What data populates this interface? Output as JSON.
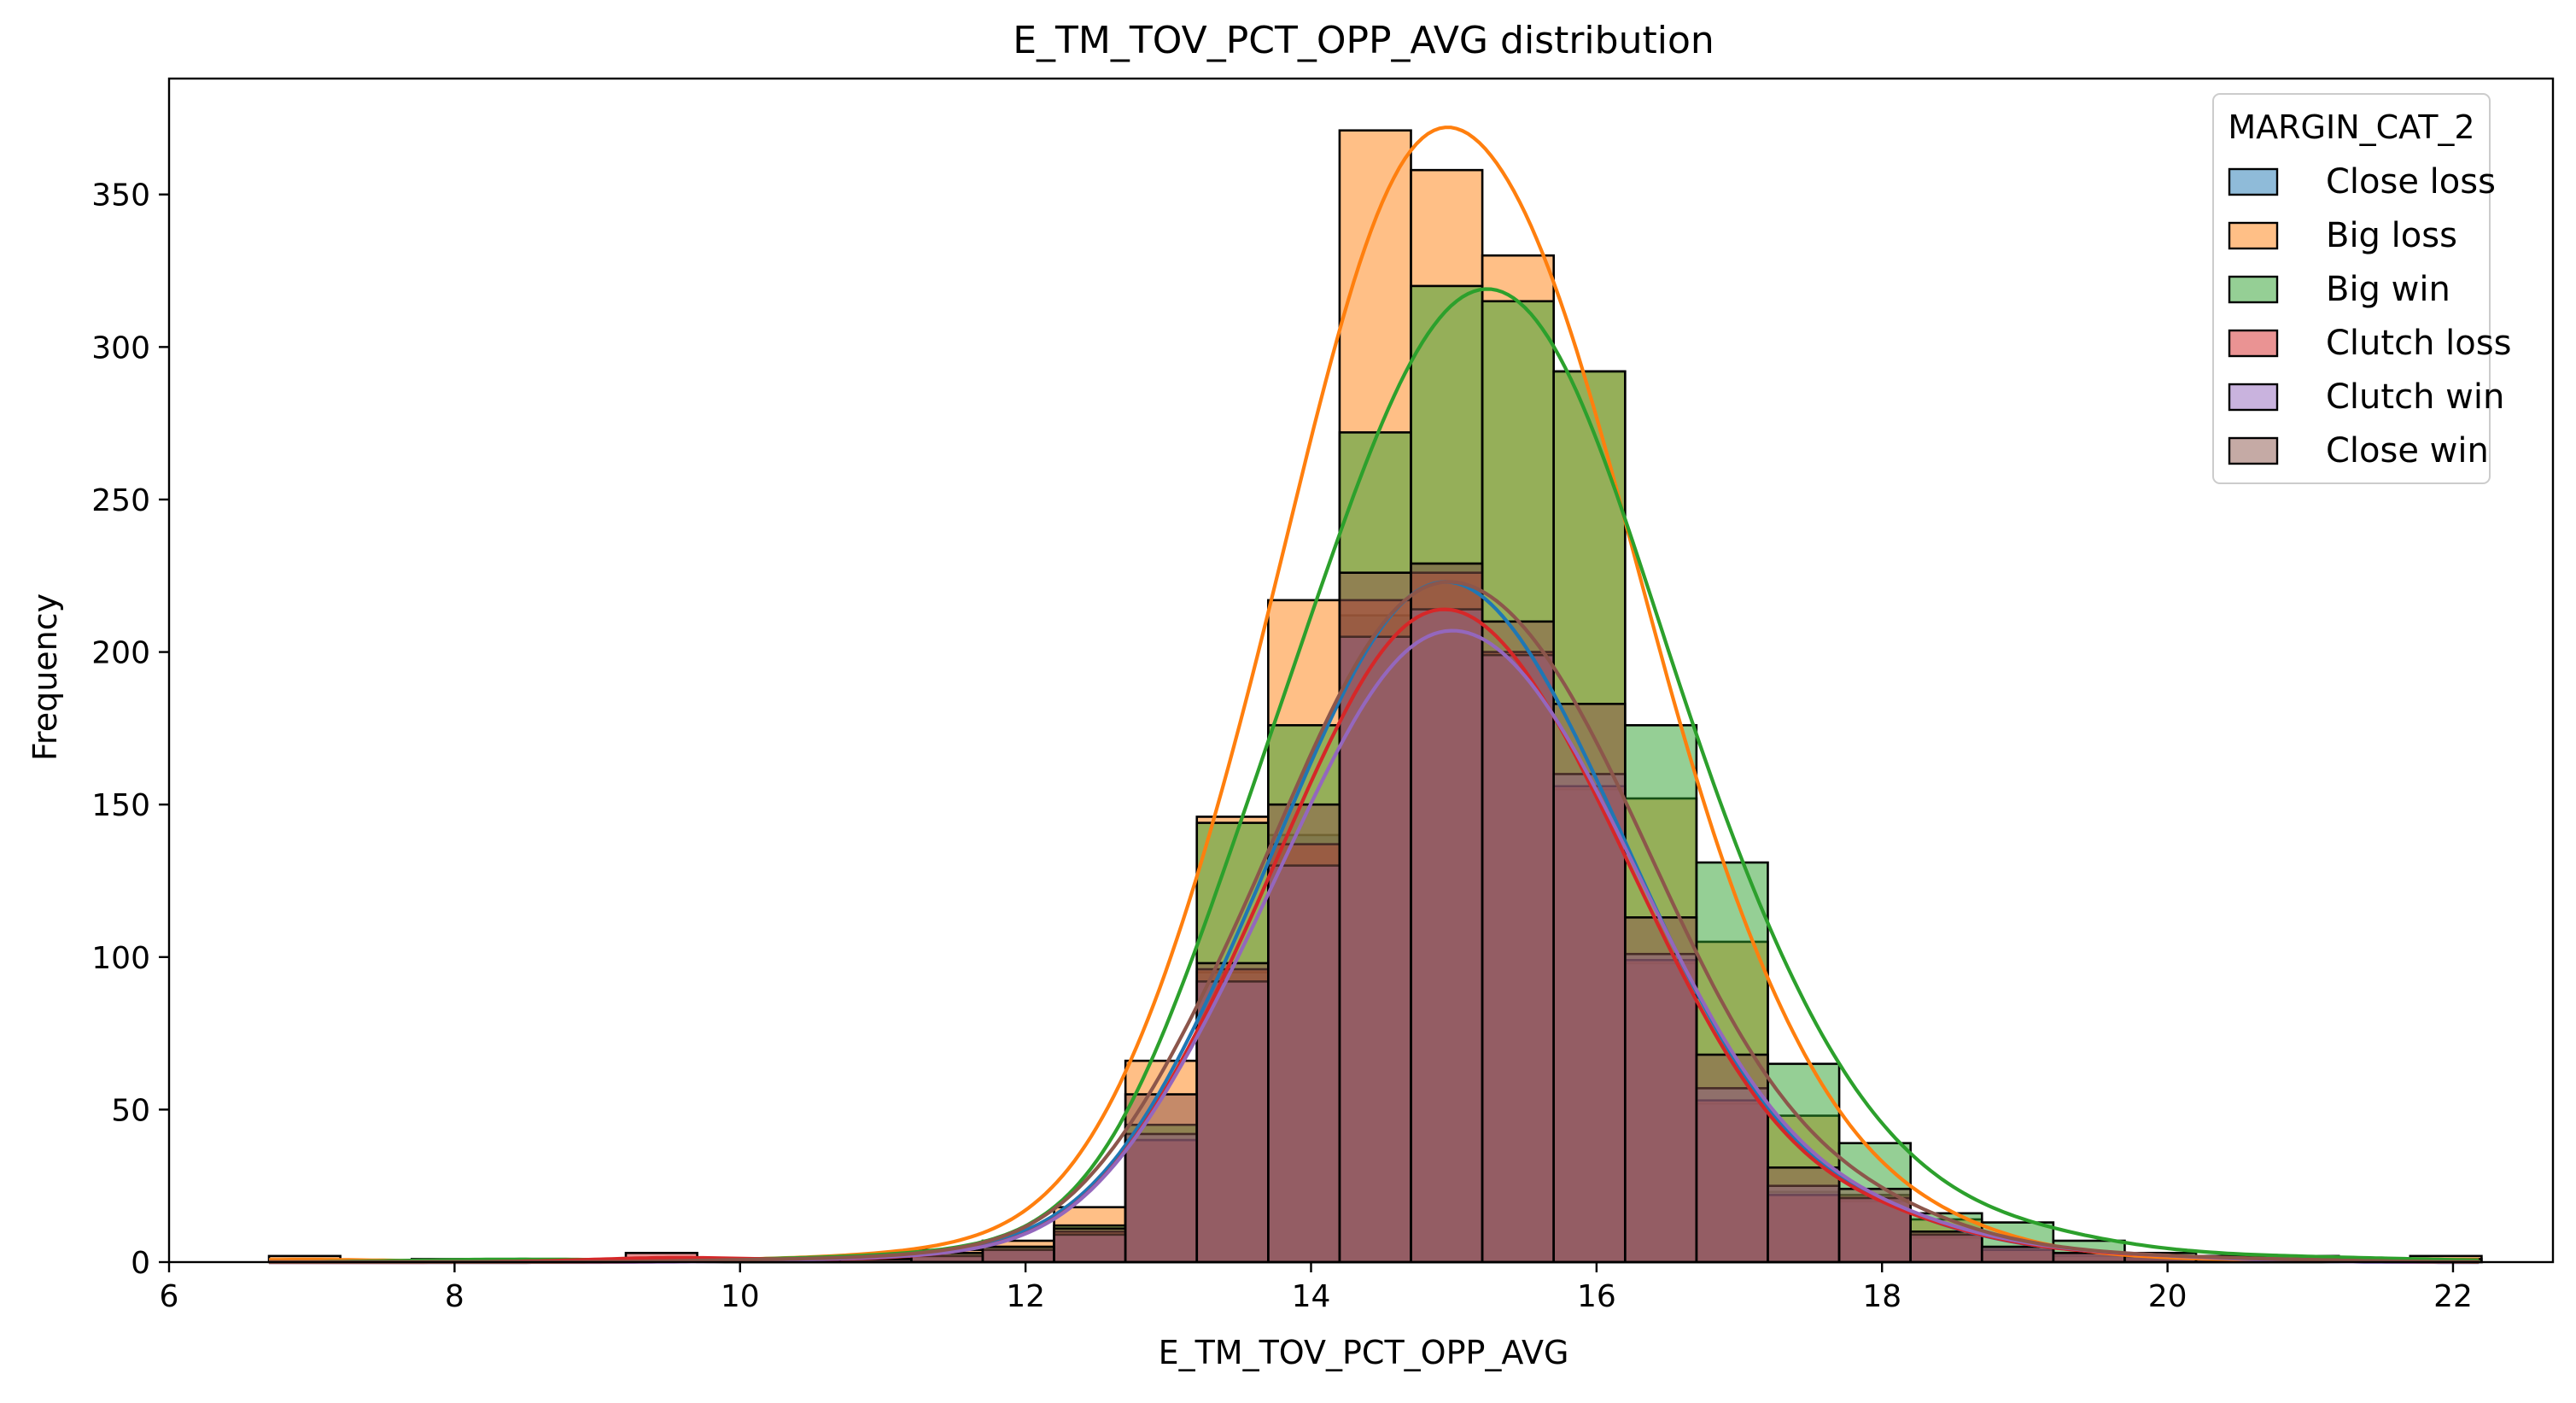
{
  "chart_data": {
    "type": "histogram",
    "title": "E_TM_TOV_PCT_OPP_AVG distribution",
    "xlabel": "E_TM_TOV_PCT_OPP_AVG",
    "ylabel": "Frequency",
    "xlim": [
      6,
      22.7
    ],
    "ylim": [
      0,
      388
    ],
    "xticks": [
      6,
      8,
      10,
      12,
      14,
      16,
      18,
      20,
      22
    ],
    "yticks": [
      0,
      50,
      100,
      150,
      200,
      250,
      300,
      350
    ],
    "bins": {
      "start": 6.7,
      "width": 0.5,
      "count": 31
    },
    "grid": false,
    "kde": true,
    "legend": {
      "title": "MARGIN_CAT_2",
      "placement": "top-right"
    },
    "series": [
      {
        "name": "Close loss",
        "color": "#1f77b4",
        "values": [
          0,
          0,
          0,
          0,
          0,
          0,
          1,
          0,
          1,
          3,
          5,
          10,
          40,
          95,
          140,
          212,
          229,
          200,
          155,
          98,
          52,
          23,
          20,
          8,
          4,
          3,
          2,
          1,
          0,
          0,
          0
        ],
        "kde_peak": 223
      },
      {
        "name": "Big loss",
        "color": "#ff7f0e",
        "values": [
          2,
          0,
          0,
          1,
          0,
          0,
          1,
          1,
          2,
          4,
          7,
          18,
          66,
          146,
          217,
          371,
          358,
          330,
          292,
          152,
          105,
          48,
          22,
          14,
          4,
          2,
          1,
          1,
          0,
          0,
          2
        ],
        "kde_peak": 372
      },
      {
        "name": "Big win",
        "color": "#2ca02c",
        "values": [
          0,
          0,
          1,
          1,
          1,
          0,
          1,
          1,
          2,
          3,
          5,
          12,
          45,
          144,
          176,
          272,
          320,
          315,
          292,
          176,
          131,
          65,
          39,
          16,
          13,
          7,
          3,
          2,
          2,
          1,
          1
        ],
        "kde_peak": 319
      },
      {
        "name": "Clutch loss",
        "color": "#d62728",
        "values": [
          0,
          0,
          0,
          0,
          0,
          3,
          1,
          0,
          1,
          2,
          4,
          10,
          40,
          96,
          137,
          217,
          226,
          200,
          156,
          99,
          53,
          22,
          21,
          9,
          4,
          3,
          2,
          1,
          1,
          0,
          0
        ],
        "kde_peak": 214
      },
      {
        "name": "Clutch win",
        "color": "#9467bd",
        "values": [
          0,
          0,
          0,
          0,
          0,
          0,
          0,
          1,
          1,
          2,
          4,
          9,
          42,
          92,
          130,
          205,
          214,
          199,
          160,
          101,
          57,
          25,
          21,
          9,
          5,
          3,
          2,
          1,
          0,
          0,
          0
        ],
        "kde_peak": 207
      },
      {
        "name": "Close win",
        "color": "#8c564b",
        "values": [
          0,
          0,
          0,
          0,
          0,
          0,
          1,
          1,
          1,
          3,
          5,
          11,
          55,
          98,
          150,
          226,
          229,
          210,
          183,
          113,
          68,
          31,
          24,
          10,
          5,
          3,
          2,
          1,
          1,
          0,
          0
        ],
        "kde_peak": 223
      }
    ]
  }
}
